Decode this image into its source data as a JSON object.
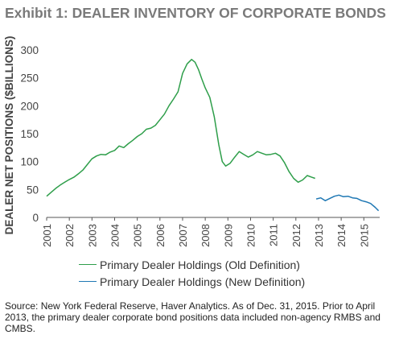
{
  "title": "Exhibit 1: DEALER INVENTORY OF CORPORATE BONDS",
  "source_note": "Source: New York Federal Reserve, Haver Analytics. As of Dec. 31, 2015. Prior to April 2013, the primary dealer corporate bond positions data included non-agency RMBS and CMBS.",
  "chart_data": {
    "type": "line",
    "ylabel": "DEALER NET POSITIONS ($BILLIONS)",
    "xlabel": "",
    "ylim": [
      0,
      300
    ],
    "xlim": [
      2001,
      2015.7
    ],
    "y_ticks": [
      0,
      50,
      100,
      150,
      200,
      250,
      300
    ],
    "x_ticks": [
      "2001",
      "2002",
      "2003",
      "2004",
      "2005",
      "2006",
      "2007",
      "2008",
      "2009",
      "2010",
      "2011",
      "2012",
      "2013",
      "2014",
      "2015"
    ],
    "grid": false,
    "legend_position": "bottom",
    "series": [
      {
        "name": "Primary Dealer Holdings (Old Definition)",
        "color": "#2e9e4a",
        "points": [
          [
            2001.0,
            38
          ],
          [
            2001.2,
            45
          ],
          [
            2001.4,
            52
          ],
          [
            2001.6,
            58
          ],
          [
            2001.8,
            63
          ],
          [
            2002.0,
            68
          ],
          [
            2002.2,
            72
          ],
          [
            2002.4,
            78
          ],
          [
            2002.6,
            85
          ],
          [
            2002.8,
            95
          ],
          [
            2003.0,
            105
          ],
          [
            2003.2,
            110
          ],
          [
            2003.4,
            113
          ],
          [
            2003.6,
            112
          ],
          [
            2003.8,
            117
          ],
          [
            2004.0,
            120
          ],
          [
            2004.2,
            128
          ],
          [
            2004.4,
            125
          ],
          [
            2004.6,
            132
          ],
          [
            2004.8,
            138
          ],
          [
            2005.0,
            145
          ],
          [
            2005.2,
            150
          ],
          [
            2005.4,
            158
          ],
          [
            2005.6,
            160
          ],
          [
            2005.8,
            165
          ],
          [
            2006.0,
            175
          ],
          [
            2006.2,
            185
          ],
          [
            2006.4,
            200
          ],
          [
            2006.6,
            212
          ],
          [
            2006.8,
            225
          ],
          [
            2007.0,
            258
          ],
          [
            2007.2,
            275
          ],
          [
            2007.4,
            283
          ],
          [
            2007.55,
            278
          ],
          [
            2007.7,
            265
          ],
          [
            2007.85,
            248
          ],
          [
            2008.0,
            232
          ],
          [
            2008.2,
            215
          ],
          [
            2008.4,
            180
          ],
          [
            2008.6,
            130
          ],
          [
            2008.75,
            100
          ],
          [
            2008.9,
            92
          ],
          [
            2009.1,
            97
          ],
          [
            2009.3,
            108
          ],
          [
            2009.5,
            118
          ],
          [
            2009.7,
            113
          ],
          [
            2009.9,
            108
          ],
          [
            2010.1,
            112
          ],
          [
            2010.3,
            118
          ],
          [
            2010.5,
            115
          ],
          [
            2010.7,
            112
          ],
          [
            2010.9,
            113
          ],
          [
            2011.1,
            115
          ],
          [
            2011.3,
            110
          ],
          [
            2011.5,
            98
          ],
          [
            2011.7,
            82
          ],
          [
            2011.9,
            70
          ],
          [
            2012.1,
            63
          ],
          [
            2012.3,
            67
          ],
          [
            2012.5,
            75
          ],
          [
            2012.7,
            72
          ],
          [
            2012.85,
            70
          ]
        ]
      },
      {
        "name": "Primary Dealer Holdings (New Definition)",
        "color": "#1f78b4",
        "points": [
          [
            2012.9,
            33
          ],
          [
            2013.1,
            35
          ],
          [
            2013.3,
            30
          ],
          [
            2013.5,
            34
          ],
          [
            2013.7,
            38
          ],
          [
            2013.9,
            40
          ],
          [
            2014.1,
            37
          ],
          [
            2014.3,
            38
          ],
          [
            2014.5,
            35
          ],
          [
            2014.7,
            34
          ],
          [
            2014.9,
            30
          ],
          [
            2015.1,
            28
          ],
          [
            2015.3,
            25
          ],
          [
            2015.5,
            18
          ],
          [
            2015.65,
            12
          ]
        ]
      }
    ]
  }
}
